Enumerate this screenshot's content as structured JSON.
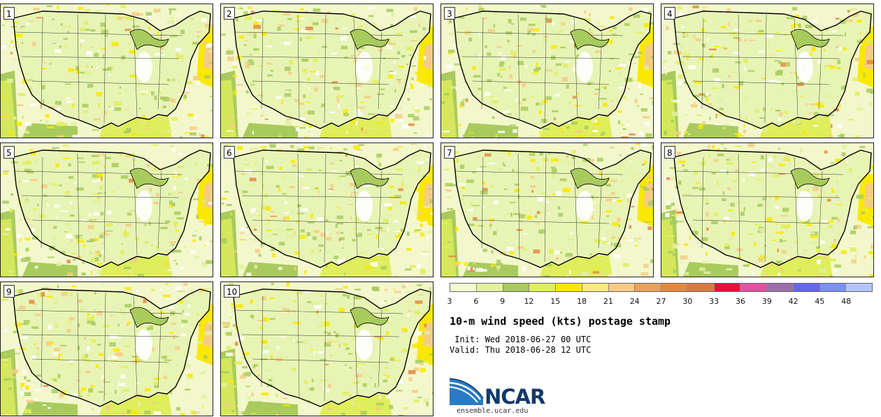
{
  "panels": [
    {
      "label": "1"
    },
    {
      "label": "2"
    },
    {
      "label": "3"
    },
    {
      "label": "4"
    },
    {
      "label": "5"
    },
    {
      "label": "6"
    },
    {
      "label": "7"
    },
    {
      "label": "8"
    },
    {
      "label": "9"
    },
    {
      "label": "10"
    }
  ],
  "colorbar": {
    "ticks": [
      "3",
      "6",
      "9",
      "12",
      "15",
      "18",
      "21",
      "24",
      "27",
      "30",
      "33",
      "36",
      "39",
      "42",
      "45",
      "48"
    ],
    "colors": [
      "#f4f9d2",
      "#e2f1a0",
      "#a9cb5e",
      "#dfee5c",
      "#fbe800",
      "#fae97e",
      "#f5cc86",
      "#e8a25a",
      "#e3893e",
      "#d97a44",
      "#e8113b",
      "#e252a0",
      "#9b6fa8",
      "#6466f0",
      "#7d90f5",
      "#b3c5f8"
    ]
  },
  "title": "10-m wind speed (kts) postage stamp",
  "init_line": " Init: Wed 2018-06-27 00 UTC",
  "valid_line": "Valid: Thu 2018-06-28 12 UTC",
  "logo": {
    "text": "NCAR",
    "colors": {
      "primary": "#123a6b",
      "accent": "#2a7bc4"
    }
  },
  "site": "ensemble.ucar.edu"
}
